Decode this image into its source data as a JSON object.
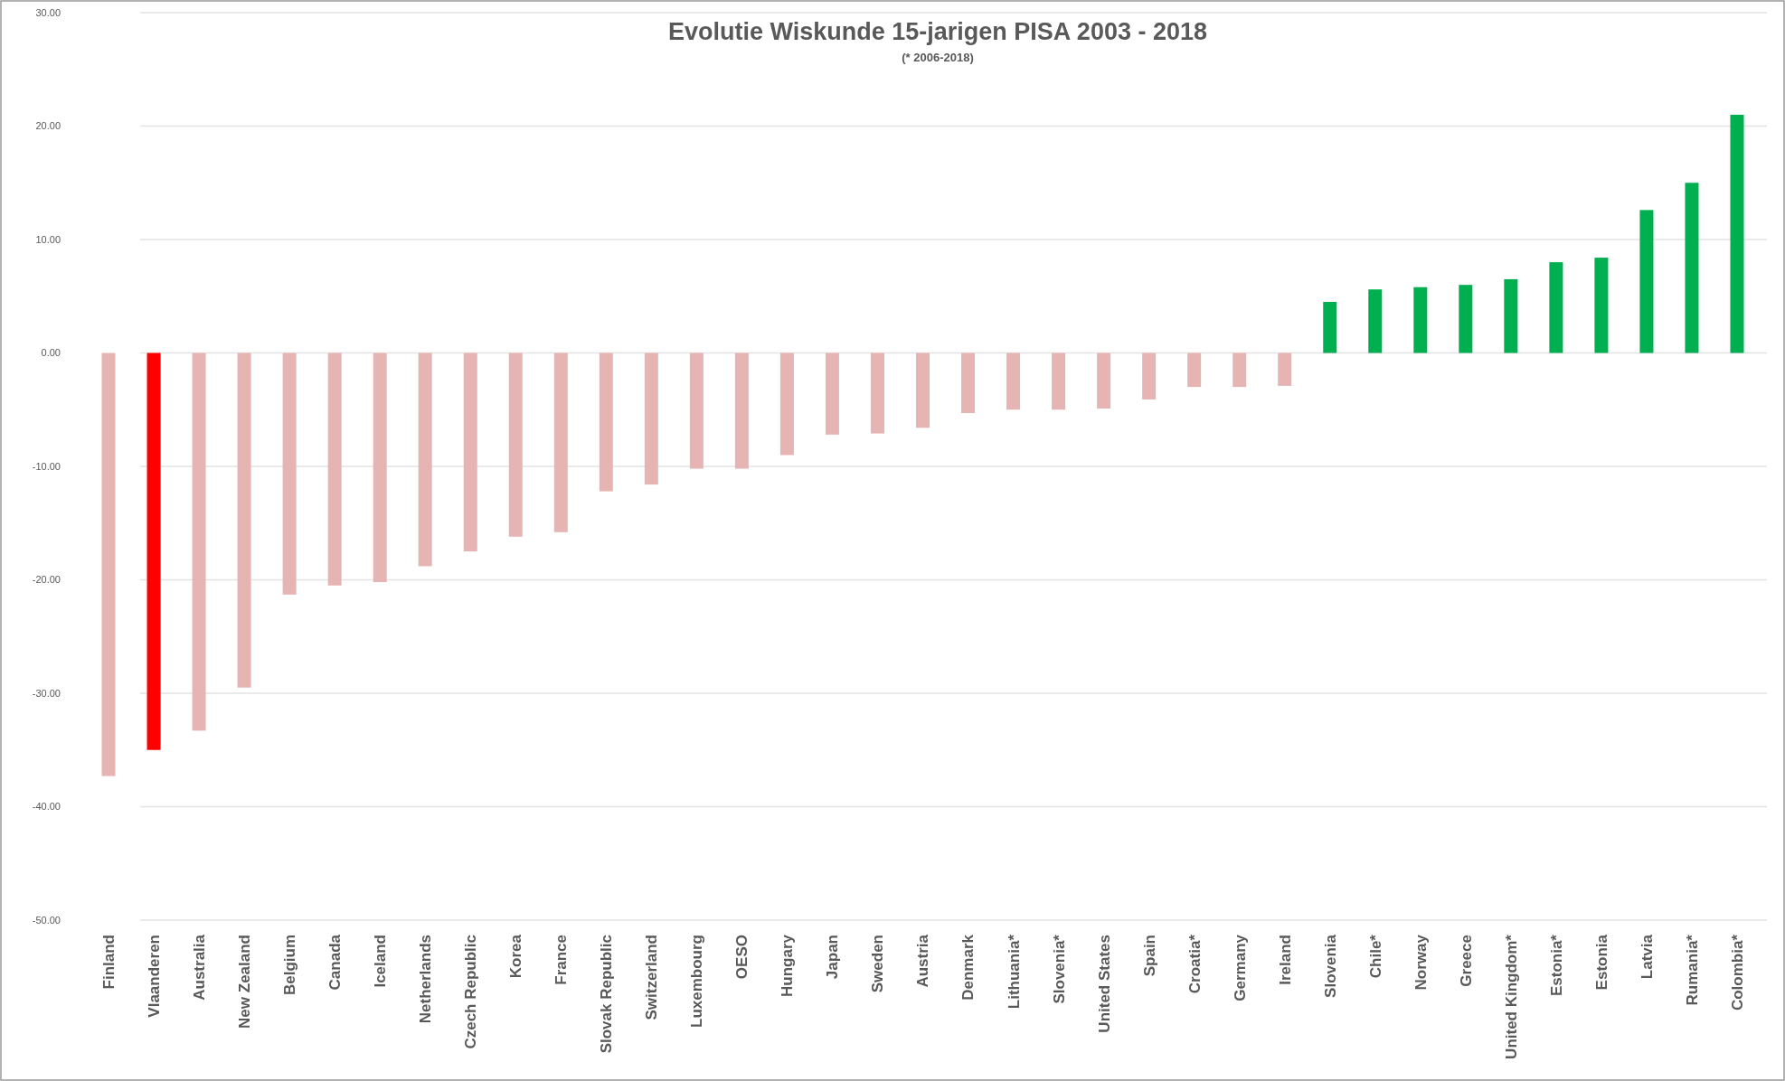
{
  "chart_data": {
    "type": "bar",
    "title": "Evolutie Wiskunde 15-jarigen PISA 2003 - 2018",
    "subtitle": "(* 2006-2018)",
    "categories": [
      "Finland",
      "Vlaanderen",
      "Australia",
      "New Zealand",
      "Belgium",
      "Canada",
      "Iceland",
      "Netherlands",
      "Czech Republic",
      "Korea",
      "France",
      "Slovak Republic",
      "Switzerland",
      "Luxembourg",
      "OESO",
      "Hungary",
      "Japan",
      "Sweden",
      "Austria",
      "Denmark",
      "Lithuania*",
      "Slovenia*",
      "United States",
      "Spain",
      "Croatia*",
      "Germany",
      "Ireland",
      "Slovenia",
      "Chile*",
      "Norway",
      "Greece",
      "United Kingdom*",
      "Estonia*",
      "Estonia",
      "Latvia",
      "Rumania*",
      "Colombia*"
    ],
    "values": [
      -37.3,
      -35,
      -33.3,
      -29.5,
      -21.3,
      -20.5,
      -20.2,
      -18.8,
      -17.5,
      -16.2,
      -15.8,
      -12.2,
      -11.6,
      -10.2,
      -10.2,
      -9,
      -7.2,
      -7.1,
      -6.6,
      -5.3,
      -5,
      -5,
      -4.9,
      -4.1,
      -3,
      -3,
      -2.9,
      4.5,
      5.6,
      5.8,
      6,
      6.5,
      8,
      8.4,
      12.6,
      15,
      21
    ],
    "colors": [
      "#e6b5b3",
      "#ff0000",
      "#e6b5b3",
      "#e6b5b3",
      "#e6b5b3",
      "#e6b5b3",
      "#e6b5b3",
      "#e6b5b3",
      "#e6b5b3",
      "#e6b5b3",
      "#e6b5b3",
      "#e6b5b3",
      "#e6b5b3",
      "#e6b5b3",
      "#e6b5b3",
      "#e6b5b3",
      "#e6b5b3",
      "#e6b5b3",
      "#e6b5b3",
      "#e6b5b3",
      "#e6b5b3",
      "#e6b5b3",
      "#e6b5b3",
      "#e6b5b3",
      "#e6b5b3",
      "#e6b5b3",
      "#e6b5b3",
      "#00b050",
      "#00b050",
      "#00b050",
      "#00b050",
      "#00b050",
      "#00b050",
      "#00b050",
      "#00b050",
      "#00b050",
      "#00b050"
    ],
    "ylim": [
      -50,
      30
    ],
    "yticks": [
      {
        "value": -50,
        "label": "-50.00"
      },
      {
        "value": -40,
        "label": "-40.00"
      },
      {
        "value": -30,
        "label": "-30.00"
      },
      {
        "value": -20,
        "label": "-20.00"
      },
      {
        "value": -10,
        "label": "-10.00"
      },
      {
        "value": 0,
        "label": "0.00"
      },
      {
        "value": 10,
        "label": "10.00"
      },
      {
        "value": 20,
        "label": "20.00"
      },
      {
        "value": 30,
        "label": "30.00"
      }
    ],
    "grid": "y"
  }
}
